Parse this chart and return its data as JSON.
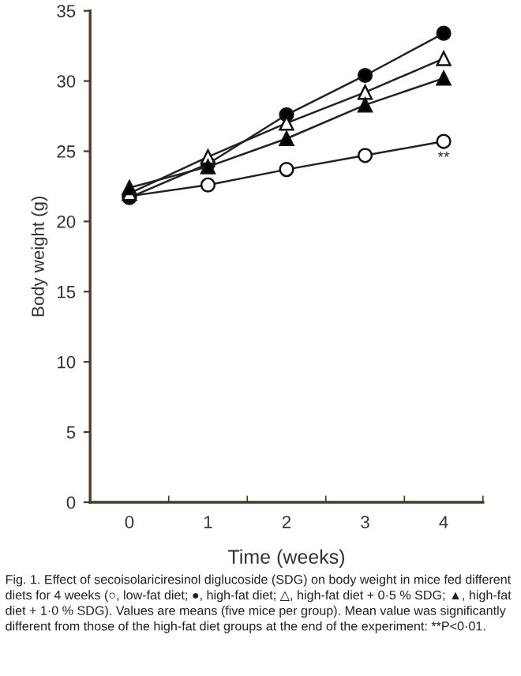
{
  "chart_data": {
    "type": "line",
    "xlabel": "Time (weeks)",
    "ylabel": "Body weight (g)",
    "categories": [
      "0",
      "1",
      "2",
      "3",
      "4"
    ],
    "series": [
      {
        "color": "#ffffff",
        "marker": "circle",
        "values": [
          21.8,
          22.6,
          23.7,
          24.7,
          25.7
        ]
      },
      {
        "color": "#000000",
        "marker": "circle",
        "values": [
          21.7,
          24.1,
          27.6,
          30.4,
          33.4
        ]
      },
      {
        "color": "#ffffff",
        "marker": "triangle",
        "values": [
          22.0,
          24.6,
          27.0,
          29.2,
          31.6
        ]
      },
      {
        "color": "#000000",
        "marker": "triangle",
        "values": [
          22.4,
          23.9,
          25.9,
          28.3,
          30.2
        ]
      }
    ],
    "ylim": [
      0,
      35
    ],
    "yticks": [
      0,
      5,
      10,
      15,
      20,
      25,
      30,
      35
    ],
    "grid": false,
    "line_style": "solid",
    "annotations": [
      "**",
      "Fig. 1. Effect of secoisolariciresinol diglucoside (SDG) on body weight in mice fed different diets for 4 weeks (○, low-fat diet; ●, high-fat diet; △, high-fat diet + 0·5 % SDG; ▲, high-fat diet + 1·0 % SDG). Values are means (five mice per group). Mean value was significantly different from those of the high-fat diet groups at the end of the experiment: **P<0·01."
    ]
  }
}
